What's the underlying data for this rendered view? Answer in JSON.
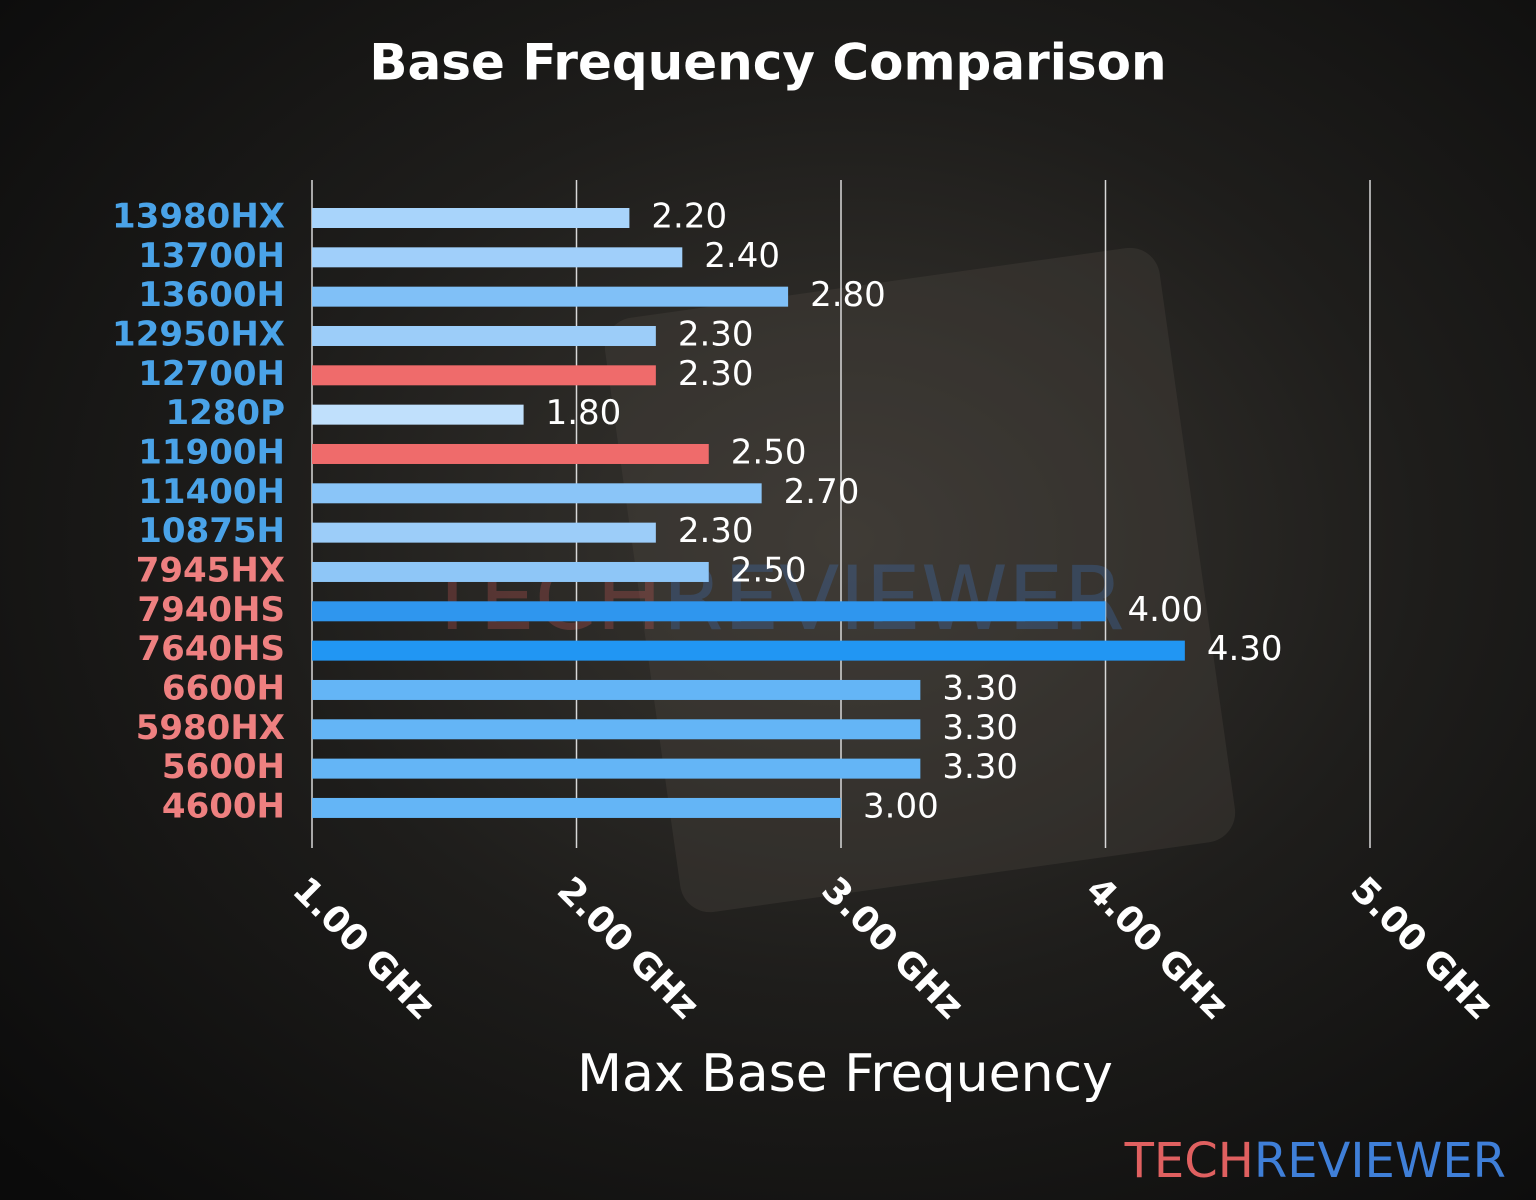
{
  "chart_data": {
    "type": "barh",
    "title": "Base Frequency Comparison",
    "x_label": "Max Base Frequency",
    "categories": [
      "13980HX",
      "13700H",
      "13600H",
      "12950HX",
      "12700H",
      "1280P",
      "11900H",
      "11400H",
      "10875H",
      "7945HX",
      "7940HS",
      "7640HS",
      "6600H",
      "5980HX",
      "5600H",
      "4600H"
    ],
    "category_colors": [
      "#4aa3e8",
      "#4aa3e8",
      "#4aa3e8",
      "#4aa3e8",
      "#4aa3e8",
      "#4aa3e8",
      "#4aa3e8",
      "#4aa3e8",
      "#4aa3e8",
      "#ee8080",
      "#ee8080",
      "#ee8080",
      "#ee8080",
      "#ee8080",
      "#ee8080",
      "#ee8080"
    ],
    "values": [
      2.2,
      2.4,
      2.8,
      2.3,
      2.3,
      1.8,
      2.5,
      2.7,
      2.3,
      2.5,
      4.0,
      4.3,
      3.3,
      3.3,
      3.3,
      3.0
    ],
    "value_labels": [
      "2.20",
      "2.40",
      "2.80",
      "2.30",
      "2.30",
      "1.80",
      "2.50",
      "2.70",
      "2.30",
      "2.50",
      "4.00",
      "4.30",
      "3.30",
      "3.30",
      "3.30",
      "3.00"
    ],
    "colors": [
      "#a8d4fb",
      "#a0cffa",
      "#80c0f7",
      "#9ccdf9",
      "#ef6b6b",
      "#c0e0fc",
      "#ef6b6b",
      "#8ac5f8",
      "#9ccdf9",
      "#8ec6f7",
      "#2f96ee",
      "#2196f3",
      "#64b5f6",
      "#64b5f6",
      "#64b5f6",
      "#64b5f6"
    ],
    "xlim": [
      1,
      5
    ],
    "xticks": [
      {
        "value": 1,
        "label": "1.00 GHz"
      },
      {
        "value": 2,
        "label": "2.00 GHz"
      },
      {
        "value": 3,
        "label": "3.00 GHz"
      },
      {
        "value": 4,
        "label": "4.00 GHz"
      },
      {
        "value": 5,
        "label": "5.00 GHz"
      }
    ],
    "grid": true,
    "logo": [
      "TECH",
      "REVIEWER"
    ],
    "logo_colors": [
      "#e06060",
      "#3f7fd8"
    ]
  }
}
